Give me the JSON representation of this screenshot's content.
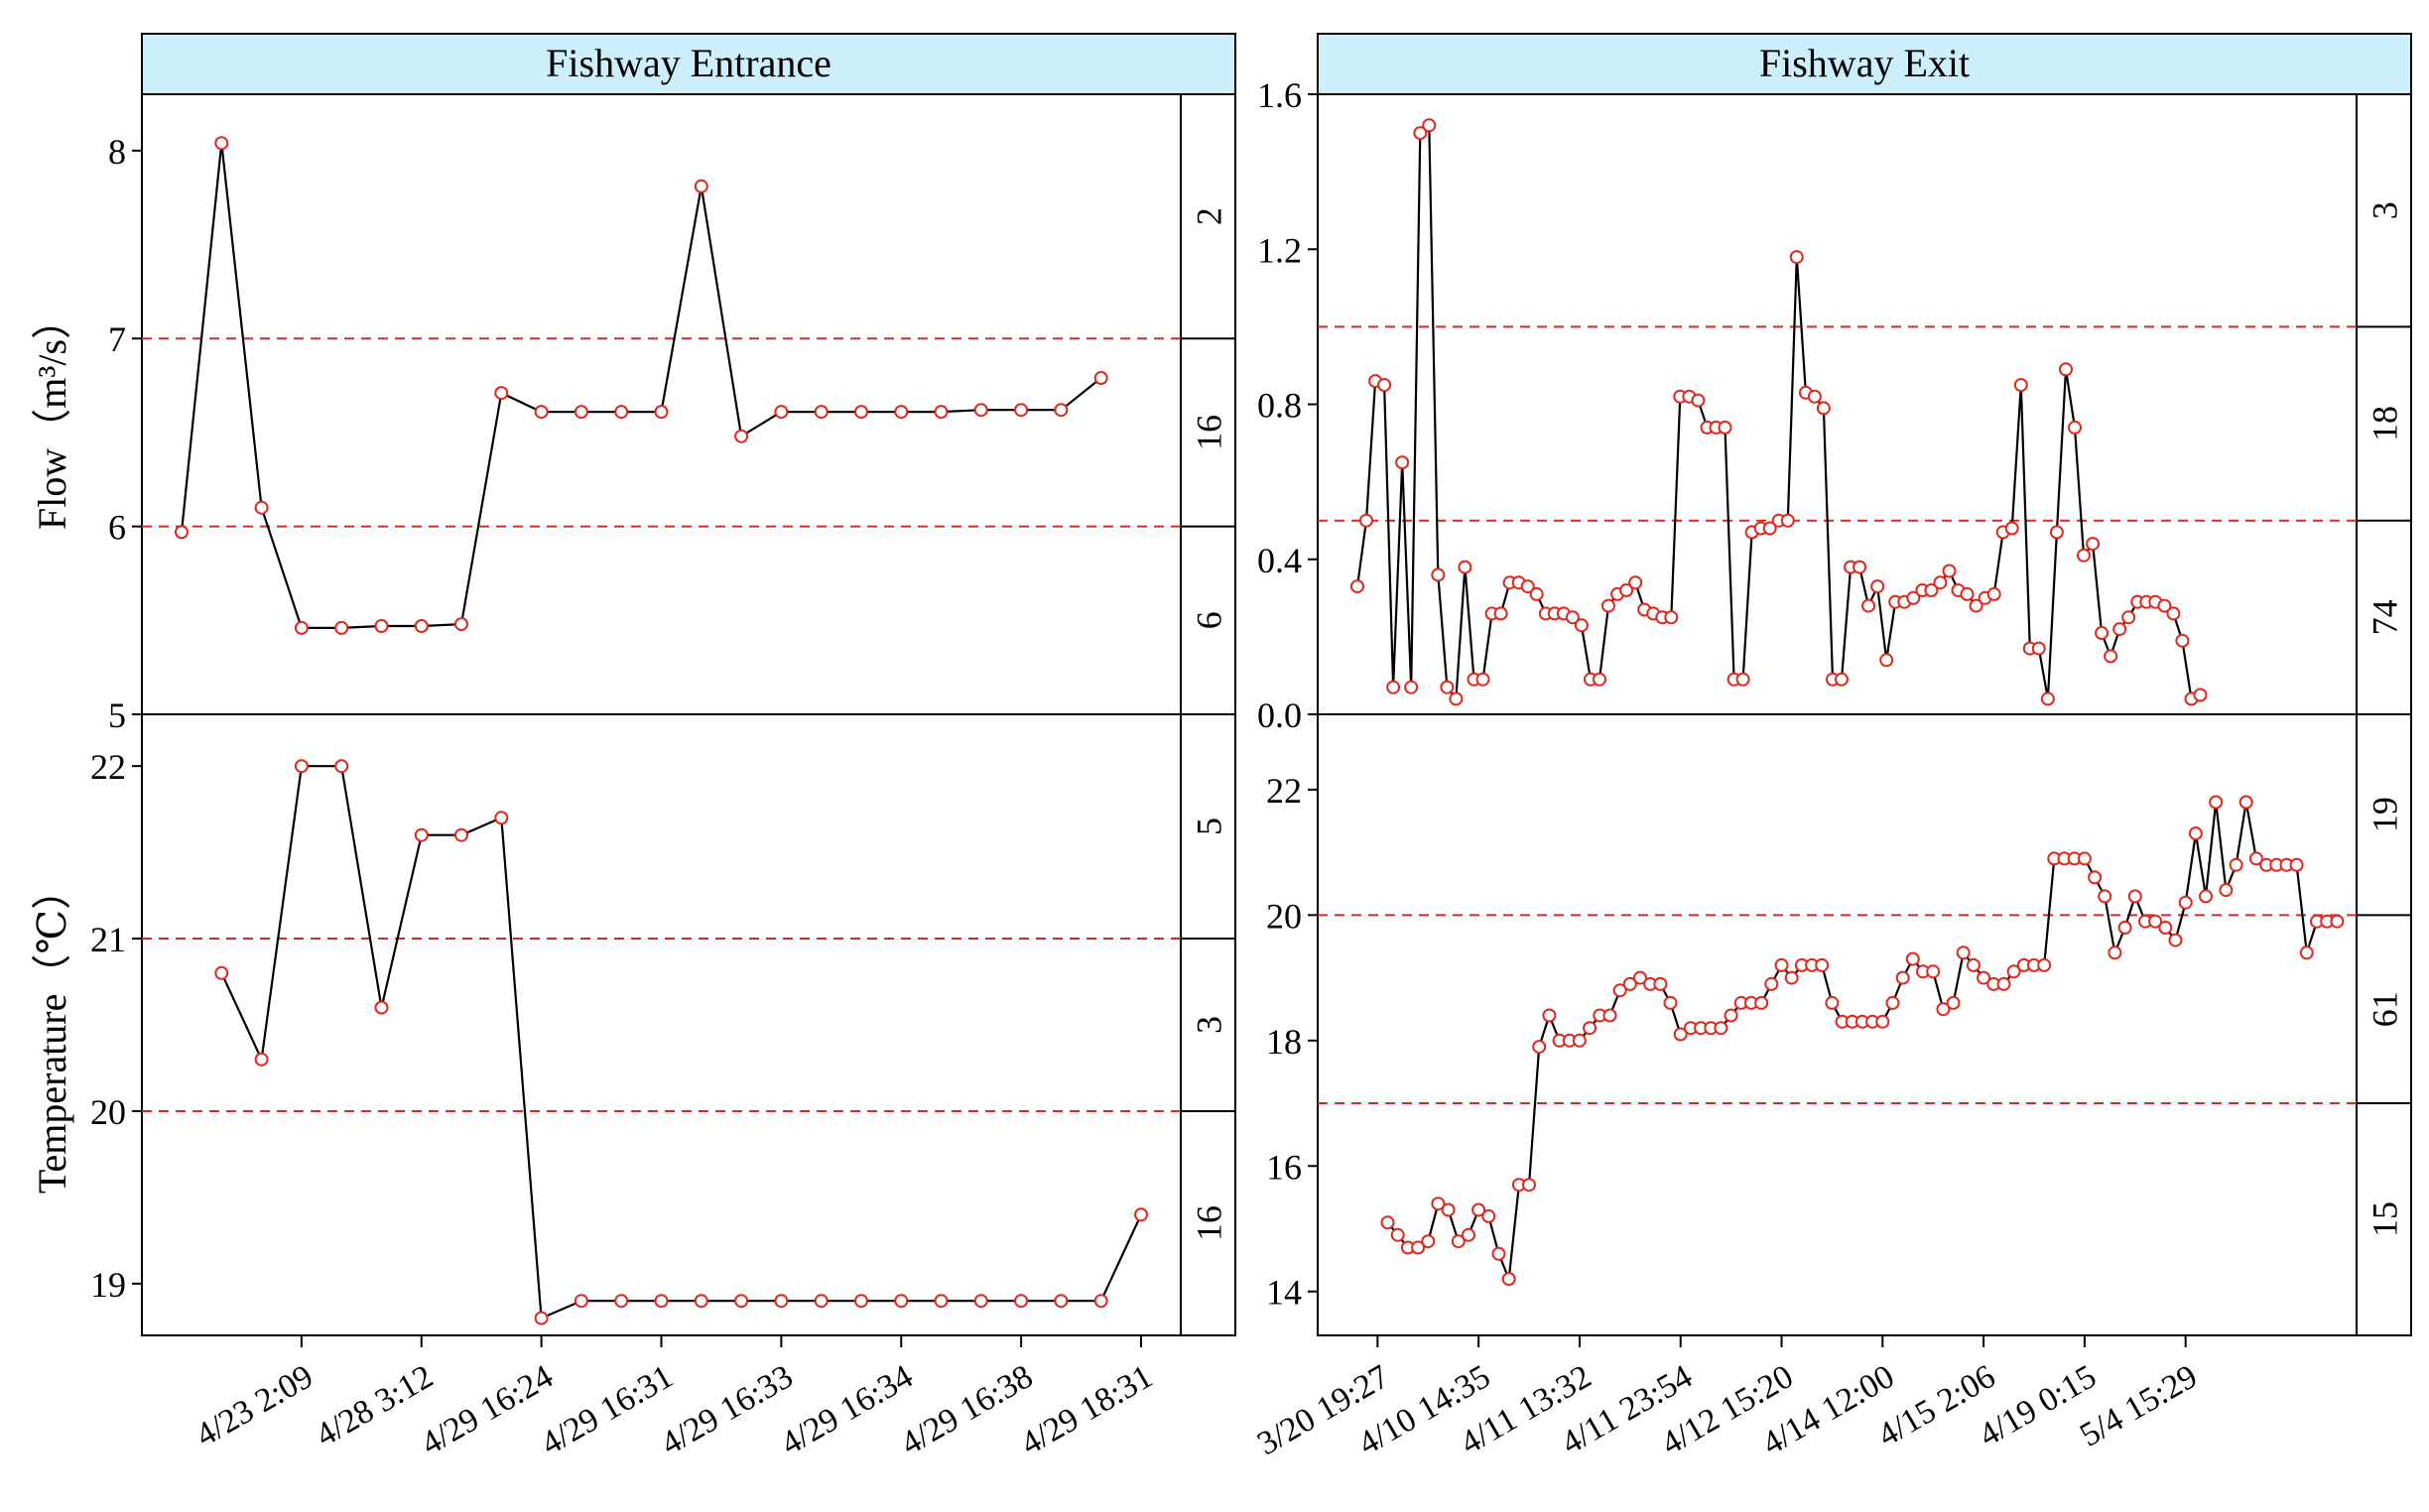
{
  "figure": {
    "y_label_flow": "Flow（m³/s）",
    "y_label_temperature": "Temperature（℃）"
  },
  "chart_data": [
    {
      "id": "entrance-flow",
      "type": "line",
      "panel_title": "Fishway Entrance",
      "ylabel": "Flow（m³/s）",
      "ylim": [
        5,
        8.3
      ],
      "yticks": [
        "5",
        "6",
        "7",
        "8"
      ],
      "xticks": [],
      "x_count": 25,
      "values": [
        5.97,
        8.04,
        6.1,
        5.46,
        5.46,
        5.47,
        5.47,
        5.48,
        6.71,
        6.61,
        6.61,
        6.61,
        6.61,
        7.81,
        6.48,
        6.61,
        6.61,
        6.61,
        6.61,
        6.61,
        6.62,
        6.62,
        6.62,
        6.79
      ],
      "reference_lines": [
        6,
        7
      ],
      "side_labels": [
        {
          "label": "2",
          "from": 7,
          "to": 8.3
        },
        {
          "label": "16",
          "from": 6,
          "to": 7
        },
        {
          "label": "6",
          "from": 5,
          "to": 6
        }
      ]
    },
    {
      "id": "exit-flow",
      "type": "line",
      "panel_title": "Fishway Exit",
      "ylabel": "",
      "ylim": [
        0,
        1.6
      ],
      "yticks": [
        "0.0",
        "0.4",
        "0.8",
        "1.2",
        "1.6"
      ],
      "xticks": [],
      "x_count": 108,
      "values": [
        0.33,
        0.5,
        0.86,
        0.85,
        0.07,
        0.65,
        0.07,
        1.5,
        1.52,
        0.36,
        0.07,
        0.04,
        0.38,
        0.09,
        0.09,
        0.26,
        0.26,
        0.34,
        0.34,
        0.33,
        0.31,
        0.26,
        0.26,
        0.26,
        0.25,
        0.23,
        0.09,
        0.09,
        0.28,
        0.31,
        0.32,
        0.34,
        0.27,
        0.26,
        0.25,
        0.25,
        0.82,
        0.82,
        0.81,
        0.74,
        0.74,
        0.74,
        0.09,
        0.09,
        0.47,
        0.48,
        0.48,
        0.5,
        0.5,
        1.18,
        0.83,
        0.82,
        0.79,
        0.09,
        0.09,
        0.38,
        0.38,
        0.28,
        0.33,
        0.14,
        0.29,
        0.29,
        0.3,
        0.32,
        0.32,
        0.34,
        0.37,
        0.32,
        0.31,
        0.28,
        0.3,
        0.31,
        0.47,
        0.48,
        0.85,
        0.17,
        0.17,
        0.04,
        0.47,
        0.89,
        0.74,
        0.41,
        0.44,
        0.21,
        0.15,
        0.22,
        0.25,
        0.29,
        0.29,
        0.29,
        0.28,
        0.26,
        0.19,
        0.04,
        0.05
      ],
      "reference_lines": [
        0.5,
        1.0
      ],
      "side_labels": [
        {
          "label": "3",
          "from": 1.0,
          "to": 1.6
        },
        {
          "label": "18",
          "from": 0.5,
          "to": 1.0
        },
        {
          "label": "74",
          "from": 0,
          "to": 0.5
        }
      ]
    },
    {
      "id": "entrance-temperature",
      "type": "line",
      "panel_title": "",
      "ylabel": "Temperature（℃）",
      "ylim": [
        18.7,
        22.3
      ],
      "yticks": [
        "19",
        "20",
        "21",
        "22"
      ],
      "xticks": [
        "4/23 2:09",
        "4/28 3:12",
        "4/29 16:24",
        "4/29 16:31",
        "4/29 16:33",
        "4/29 16:34",
        "4/29 16:38",
        "4/29 18:31"
      ],
      "xtick_positions": [
        4,
        7,
        10,
        13,
        16,
        19,
        22,
        25
      ],
      "x_count": 25,
      "x_start": 2,
      "values": [
        20.8,
        20.3,
        22.0,
        22.0,
        20.6,
        21.6,
        21.6,
        21.7,
        18.8,
        18.9,
        18.9,
        18.9,
        18.9,
        18.9,
        18.9,
        18.9,
        18.9,
        18.9,
        18.9,
        18.9,
        18.9,
        18.9,
        18.9,
        19.4
      ],
      "reference_lines": [
        20,
        21
      ],
      "side_labels": [
        {
          "label": "5",
          "from": 21,
          "to": 22.3
        },
        {
          "label": "3",
          "from": 20,
          "to": 21
        },
        {
          "label": "16",
          "from": 18.7,
          "to": 20
        }
      ]
    },
    {
      "id": "exit-temperature",
      "type": "line",
      "panel_title": "",
      "ylabel": "",
      "ylim": [
        13.3,
        23.2
      ],
      "yticks": [
        "14",
        "16",
        "18",
        "20",
        "22"
      ],
      "xticks": [
        "3/20 19:27",
        "4/10 14:35",
        "4/11 13:32",
        "4/11 23:54",
        "4/12 15:20",
        "4/14 12:00",
        "4/15 2:06",
        "4/19 0:15",
        "5/4 15:29"
      ],
      "xtick_positions": [
        3,
        13,
        23,
        33,
        43,
        53,
        63,
        73,
        83
      ],
      "x_count": 96,
      "x_start": 4,
      "values": [
        15.1,
        14.9,
        14.7,
        14.7,
        14.8,
        15.4,
        15.3,
        14.8,
        14.9,
        15.3,
        15.2,
        14.6,
        14.2,
        15.7,
        15.7,
        17.9,
        18.4,
        18.0,
        18.0,
        18.0,
        18.2,
        18.4,
        18.4,
        18.8,
        18.9,
        19.0,
        18.9,
        18.9,
        18.6,
        18.1,
        18.2,
        18.2,
        18.2,
        18.2,
        18.4,
        18.6,
        18.6,
        18.6,
        18.9,
        19.2,
        19.0,
        19.2,
        19.2,
        19.2,
        18.6,
        18.3,
        18.3,
        18.3,
        18.3,
        18.3,
        18.6,
        19.0,
        19.3,
        19.1,
        19.1,
        18.5,
        18.6,
        19.4,
        19.2,
        19.0,
        18.9,
        18.9,
        19.1,
        19.2,
        19.2,
        19.2,
        20.9,
        20.9,
        20.9,
        20.9,
        20.6,
        20.3,
        19.4,
        19.8,
        20.3,
        19.9,
        19.9,
        19.8,
        19.6,
        20.2,
        21.3,
        20.3,
        21.8,
        20.4,
        20.8,
        21.8,
        20.9,
        20.8,
        20.8,
        20.8,
        20.8,
        19.4,
        19.9,
        19.9,
        19.9
      ],
      "reference_lines": [
        17,
        20
      ],
      "side_labels": [
        {
          "label": "19",
          "from": 20,
          "to": 23.2
        },
        {
          "label": "61",
          "from": 17,
          "to": 20
        },
        {
          "label": "15",
          "from": 13.3,
          "to": 17
        }
      ]
    }
  ]
}
